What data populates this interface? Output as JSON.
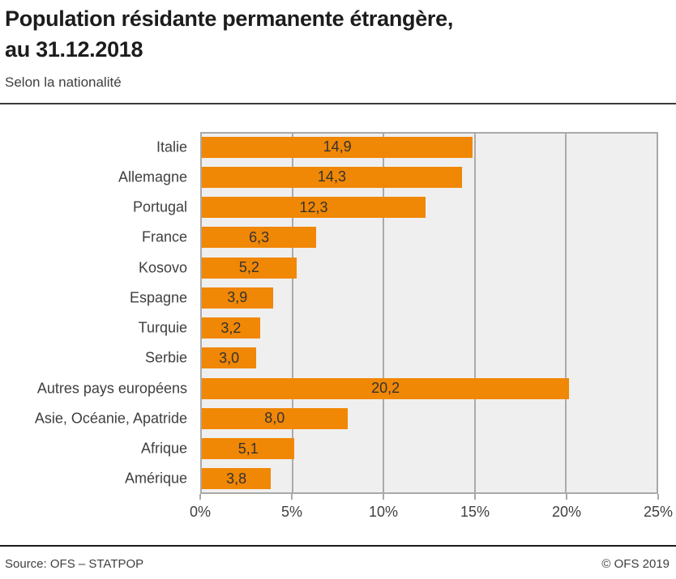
{
  "header": {
    "title": "Population résidante permanente étrangère,\nau 31.12.2018",
    "subtitle": "Selon la nationalité"
  },
  "chart_data": {
    "type": "bar",
    "orientation": "horizontal",
    "title": "Population résidante permanente étrangère, au 31.12.2018",
    "subtitle": "Selon la nationalité",
    "categories": [
      "Italie",
      "Allemagne",
      "Portugal",
      "France",
      "Kosovo",
      "Espagne",
      "Turquie",
      "Serbie",
      "Autres pays européens",
      "Asie, Océanie, Apatride",
      "Afrique",
      "Amérique"
    ],
    "values": [
      14.9,
      14.3,
      12.3,
      6.3,
      5.2,
      3.9,
      3.2,
      3.0,
      20.2,
      8.0,
      5.1,
      3.8
    ],
    "value_labels": [
      "14,9",
      "14,3",
      "12,3",
      "6,3",
      "5,2",
      "3,9",
      "3,2",
      "3,0",
      "20,2",
      "8,0",
      "5,1",
      "3,8"
    ],
    "x_ticks": [
      "0%",
      "5%",
      "10%",
      "15%",
      "20%",
      "25%"
    ],
    "xlim": [
      0,
      25
    ],
    "x_unit": "%",
    "xlabel": "",
    "ylabel": "",
    "grid": true,
    "legend": false,
    "value_label_position": "centered-in-bar",
    "bar_color": "#f08705",
    "plot_bg": "#efefef",
    "grid_color": "#ababab",
    "text_color": "#3f3f3f"
  },
  "footer": {
    "source": "Source: OFS – STATPOP",
    "copyright": "© OFS 2019"
  }
}
